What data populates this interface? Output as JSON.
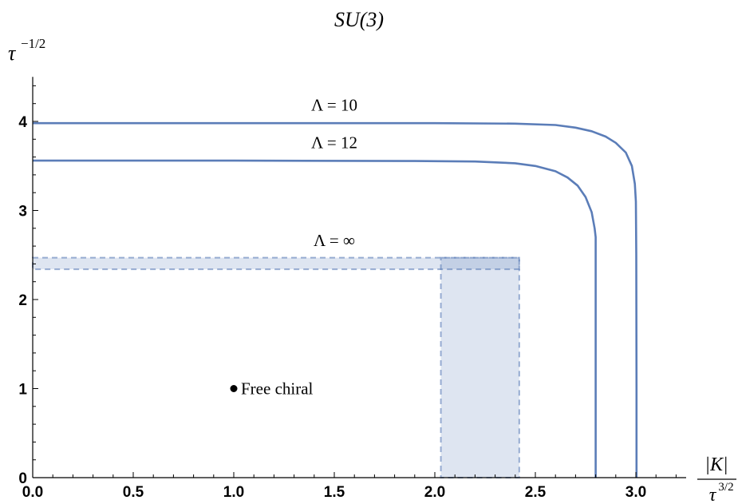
{
  "chart_data": {
    "type": "line",
    "title": "SU(3)",
    "xlabel": {
      "numerator": "|K|",
      "denominator": "τ",
      "denominator_exponent": "3/2"
    },
    "ylabel": {
      "base": "τ",
      "exponent": "−1/2"
    },
    "xlim": [
      0,
      3.25
    ],
    "ylim": [
      0,
      4.5
    ],
    "xticks": [
      "0.0",
      "0.5",
      "1.0",
      "1.5",
      "2.0",
      "2.5",
      "3.0"
    ],
    "yticks": [
      "0",
      "1",
      "2",
      "3",
      "4"
    ],
    "xtick_values": [
      0,
      0.5,
      1.0,
      1.5,
      2.0,
      2.5,
      3.0
    ],
    "ytick_values": [
      0,
      1,
      2,
      3,
      4
    ],
    "series": [
      {
        "name": "Λ = 10",
        "color": "#5b7db8",
        "points": [
          [
            0,
            3.98
          ],
          [
            1.0,
            3.98
          ],
          [
            2.0,
            3.98
          ],
          [
            2.4,
            3.975
          ],
          [
            2.6,
            3.96
          ],
          [
            2.7,
            3.93
          ],
          [
            2.78,
            3.89
          ],
          [
            2.85,
            3.83
          ],
          [
            2.9,
            3.76
          ],
          [
            2.95,
            3.65
          ],
          [
            2.98,
            3.5
          ],
          [
            2.995,
            3.3
          ],
          [
            3.0,
            3.1
          ],
          [
            3.002,
            2.5
          ],
          [
            3.003,
            1.0
          ],
          [
            3.003,
            0
          ]
        ]
      },
      {
        "name": "Λ = 12",
        "color": "#5b7db8",
        "points": [
          [
            0,
            3.56
          ],
          [
            1.0,
            3.56
          ],
          [
            1.9,
            3.555
          ],
          [
            2.2,
            3.55
          ],
          [
            2.4,
            3.53
          ],
          [
            2.5,
            3.5
          ],
          [
            2.6,
            3.44
          ],
          [
            2.66,
            3.37
          ],
          [
            2.71,
            3.28
          ],
          [
            2.75,
            3.15
          ],
          [
            2.78,
            2.98
          ],
          [
            2.795,
            2.8
          ],
          [
            2.8,
            2.7
          ],
          [
            2.8,
            1.0
          ],
          [
            2.8,
            0
          ]
        ]
      }
    ],
    "bands": [
      {
        "name": "Λ = ∞",
        "orientation": "horizontal",
        "x_range": [
          0,
          2.42
        ],
        "y_range": [
          2.34,
          2.47
        ],
        "color": "#5b7db8"
      },
      {
        "name": "Λ = ∞",
        "orientation": "vertical",
        "x_range": [
          2.03,
          2.42
        ],
        "y_range": [
          0,
          2.47
        ],
        "color": "#5b7db8"
      }
    ],
    "annotations": [
      {
        "text": "Λ = 10",
        "x": 1.5,
        "y": 4.12
      },
      {
        "text": "Λ = 12",
        "x": 1.5,
        "y": 3.7
      },
      {
        "text": "Λ = ∞",
        "x": 1.5,
        "y": 2.6
      }
    ],
    "points": [
      {
        "label": "Free chiral",
        "x": 1.0,
        "y": 1.0
      }
    ],
    "grid": false,
    "legend": "none"
  }
}
